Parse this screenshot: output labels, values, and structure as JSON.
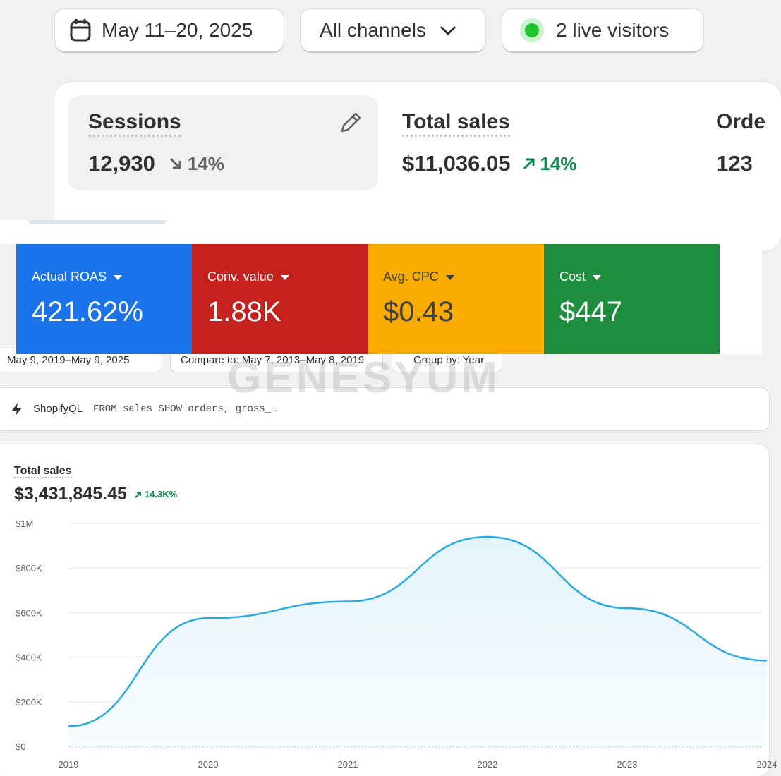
{
  "filters": {
    "date": "May 11–20, 2025",
    "channels": "All channels",
    "visitors": "2 live visitors"
  },
  "metrics": [
    {
      "label": "Sessions",
      "value": "12,930",
      "change": "14%"
    },
    {
      "label": "Total sales",
      "value": "$11,036.05",
      "change": "14%"
    },
    {
      "label": "Orde",
      "value": "123"
    }
  ],
  "ads": [
    {
      "label": "Actual ROAS",
      "value": "421.62%"
    },
    {
      "label": "Conv. value",
      "value": "1.88K"
    },
    {
      "label": "Avg. CPC",
      "value": "$0.43"
    },
    {
      "label": "Cost",
      "value": "$447"
    }
  ],
  "report_filters": [
    "May 9, 2019–May 9, 2025",
    "Compare to: May 7, 2013–May 8, 2019",
    "Group by: Year"
  ],
  "watermark": "GENESYUM",
  "query": {
    "label": "ShopifyQL",
    "text": "FROM sales SHOW orders, gross_…"
  },
  "chart_data": {
    "type": "line",
    "title": "Total sales",
    "total": "$3,431,845.45",
    "change": "14.3K%",
    "categories": [
      "2019",
      "2020",
      "2021",
      "2022",
      "2023",
      "2024"
    ],
    "series": [
      {
        "name": "Total sales",
        "color": "#29a9e0",
        "values": [
          90000,
          575000,
          650000,
          940000,
          620000,
          385000
        ]
      }
    ],
    "ylim": [
      0,
      1000000
    ],
    "yticks": [
      {
        "value": 0,
        "label": "$0"
      },
      {
        "value": 200000,
        "label": "$200K"
      },
      {
        "value": 400000,
        "label": "$400K"
      },
      {
        "value": 600000,
        "label": "$600K"
      },
      {
        "value": 800000,
        "label": "$800K"
      },
      {
        "value": 1000000,
        "label": "$1M"
      }
    ],
    "grid": true
  }
}
